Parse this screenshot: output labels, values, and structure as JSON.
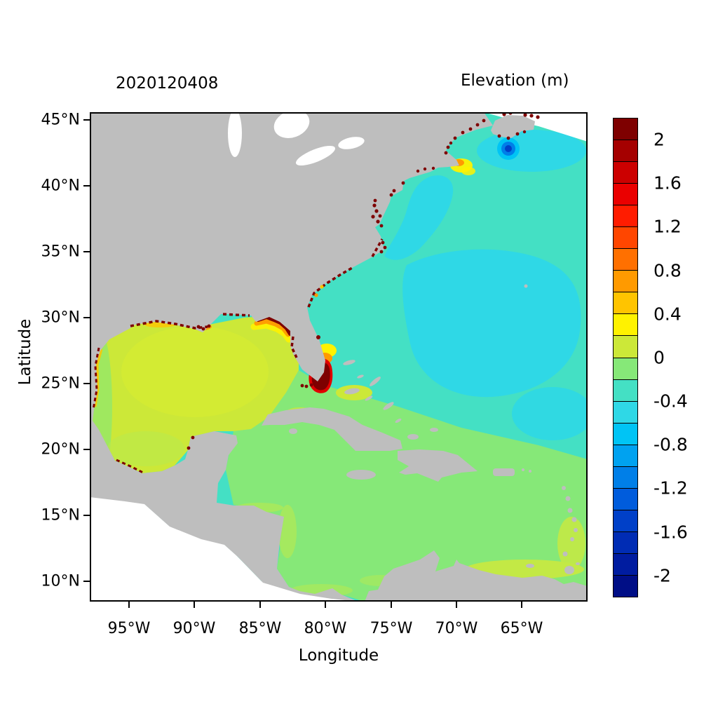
{
  "figure": {
    "date_label": "2020120408",
    "colorbar_title": "Elevation (m)",
    "xlabel": "Longitude",
    "ylabel": "Latitude"
  },
  "axes": {
    "x_ticks": [
      "95°W",
      "90°W",
      "85°W",
      "80°W",
      "75°W",
      "70°W",
      "65°W"
    ],
    "y_ticks": [
      "45°N",
      "40°N",
      "35°N",
      "30°N",
      "25°N",
      "20°N",
      "15°N",
      "10°N"
    ]
  },
  "colorbar": {
    "tick_labels": [
      "2",
      "1.6",
      "1.2",
      "0.8",
      "0.4",
      "0",
      "-0.4",
      "-0.8",
      "-1.2",
      "-1.6",
      "-2"
    ],
    "colors": [
      "#7E0000",
      "#A50000",
      "#CC0000",
      "#EA0000",
      "#FF1C00",
      "#FF4600",
      "#FF7000",
      "#FF9A00",
      "#FFC400",
      "#FFF200",
      "#CCE838",
      "#86E878",
      "#44E0C4",
      "#2FD8E6",
      "#00C4F5",
      "#00A2F0",
      "#007FE8",
      "#005CDC",
      "#0040C8",
      "#002CB4",
      "#001CA0",
      "#000E86"
    ],
    "value_range_m": [
      -2.2,
      2.2
    ],
    "step_m": 0.2
  },
  "map_colors": {
    "land": "#BEBEBE",
    "outside_domain": "#FFFFFF",
    "gulf_of_mexico": "#CCE838",
    "caribbean": "#86E878",
    "atlantic_base": "#44E0C4",
    "atlantic_cool_patch": "#2FD8E6",
    "extreme_high": "#7E0000"
  },
  "chart_data": {
    "type": "heatmap",
    "title": "Elevation (m)",
    "subtitle": "2020120408",
    "xlabel": "Longitude",
    "ylabel": "Latitude",
    "xlim_deg": [
      -98,
      -60
    ],
    "ylim_deg": [
      8.5,
      45.6
    ],
    "x_tick_values_deg_w": [
      95,
      90,
      85,
      80,
      75,
      70,
      65
    ],
    "y_tick_values_deg_n": [
      45,
      40,
      35,
      30,
      25,
      20,
      15,
      10
    ],
    "colorbar_tick_values_m": [
      2,
      1.6,
      1.2,
      0.8,
      0.4,
      0,
      -0.4,
      -0.8,
      -1.2,
      -1.6,
      -2
    ],
    "legend_position": "right",
    "grid": false,
    "regions": [
      {
        "area": "Gulf of Mexico",
        "approx_elevation_m": 0.1
      },
      {
        "area": "Caribbean Sea",
        "approx_elevation_m": -0.1
      },
      {
        "area": "Western Atlantic (background)",
        "approx_elevation_m": -0.3
      },
      {
        "area": "Central Atlantic cool patches",
        "approx_elevation_m": -0.5
      },
      {
        "area": "Southeast Florida / Gulf Stream core blob",
        "approx_elevation_m": 2.2
      },
      {
        "area": "NE Gulf coast (Big Bend) nearshore band",
        "approx_elevation_m": 1.2
      },
      {
        "area": "Gulf of Maine eddy low",
        "approx_elevation_m": -1.6
      },
      {
        "area": "Offshore Cape Cod high",
        "approx_elevation_m": 0.5
      },
      {
        "area": "Coastal/estuary speckles (Chesapeake, Carolinas, Maine, Nova Scotia, Louisiana, Texas, Veracruz)",
        "approx_elevation_m": 2.2
      }
    ]
  }
}
